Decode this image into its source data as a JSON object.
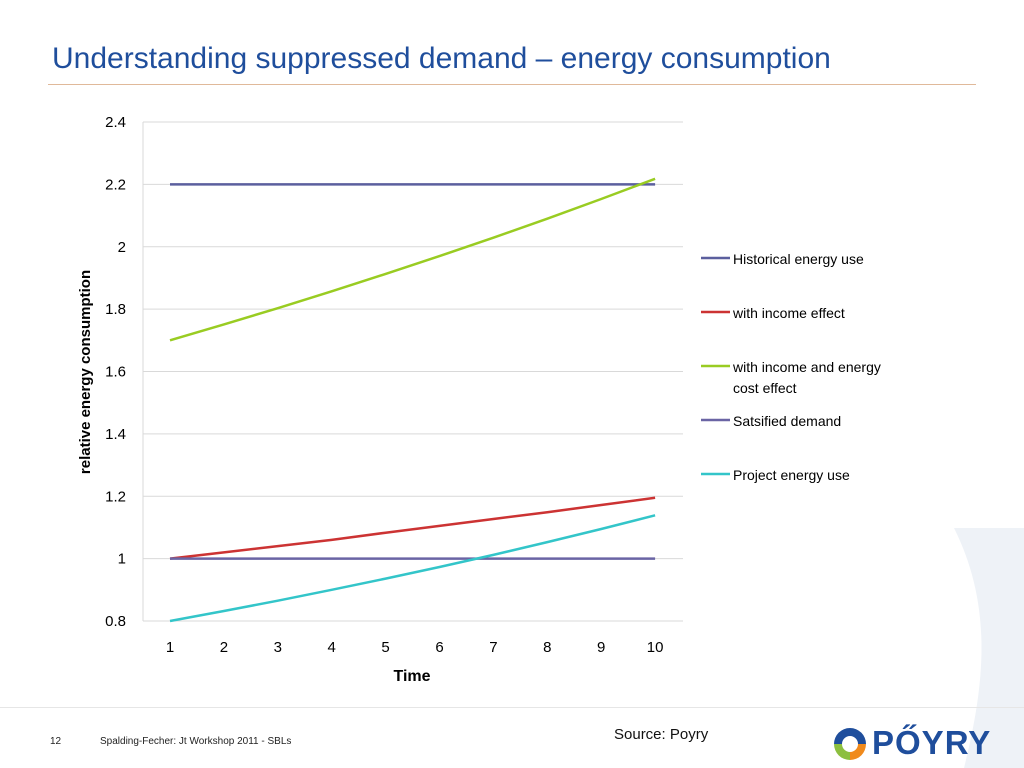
{
  "slide": {
    "title": "Understanding suppressed demand – energy consumption",
    "page_number": "12",
    "footer_text": "Spalding-Fecher: Jt Workshop 2011 - SBLs",
    "source_note": "Source: Poyry",
    "logo_text": "PŐYRY"
  },
  "colors": {
    "title": "#1f4e9c",
    "historical": "#5b5f9e",
    "income": "#cc3333",
    "income_energy_cost": "#99cc22",
    "satisfied": "#6a64a4",
    "project": "#33c5c9",
    "logo_blue": "#1f4e9c",
    "logo_orange": "#f08a1c",
    "logo_green": "#8cbf3f"
  },
  "chart_data": {
    "type": "line",
    "xlabel": "Time",
    "ylabel": "relative energy consumption",
    "x": [
      1,
      2,
      3,
      4,
      5,
      6,
      7,
      8,
      9,
      10
    ],
    "ylim": [
      0.8,
      2.4
    ],
    "y_ticks": [
      "0.8",
      "1",
      "1.2",
      "1.4",
      "1.6",
      "1.8",
      "2",
      "2.2",
      "2.4"
    ],
    "x_ticks": [
      "1",
      "2",
      "3",
      "4",
      "5",
      "6",
      "7",
      "8",
      "9",
      "10"
    ],
    "grid": "horizontal",
    "legend_position": "right",
    "series": [
      {
        "name": "Historical energy use",
        "color": "#5b5f9e",
        "values": [
          2.2,
          2.2,
          2.2,
          2.2,
          2.2,
          2.2,
          2.2,
          2.2,
          2.2,
          2.2
        ]
      },
      {
        "name": "with income effect",
        "color": "#cc3333",
        "values": [
          1.0,
          1.02,
          1.04,
          1.06,
          1.083,
          1.105,
          1.127,
          1.149,
          1.172,
          1.195
        ]
      },
      {
        "name": "with income and energy cost effect",
        "color": "#99cc22",
        "values": [
          1.7,
          1.751,
          1.803,
          1.857,
          1.913,
          1.97,
          2.029,
          2.09,
          2.153,
          2.218
        ]
      },
      {
        "name": "Satsified demand",
        "color": "#6a64a4",
        "values": [
          1.0,
          1.0,
          1.0,
          1.0,
          1.0,
          1.0,
          1.0,
          1.0,
          1.0,
          1.0
        ]
      },
      {
        "name": "Project energy use",
        "color": "#33c5c9",
        "values": [
          0.8,
          0.832,
          0.865,
          0.9,
          0.936,
          0.973,
          1.012,
          1.053,
          1.095,
          1.139
        ]
      }
    ]
  }
}
